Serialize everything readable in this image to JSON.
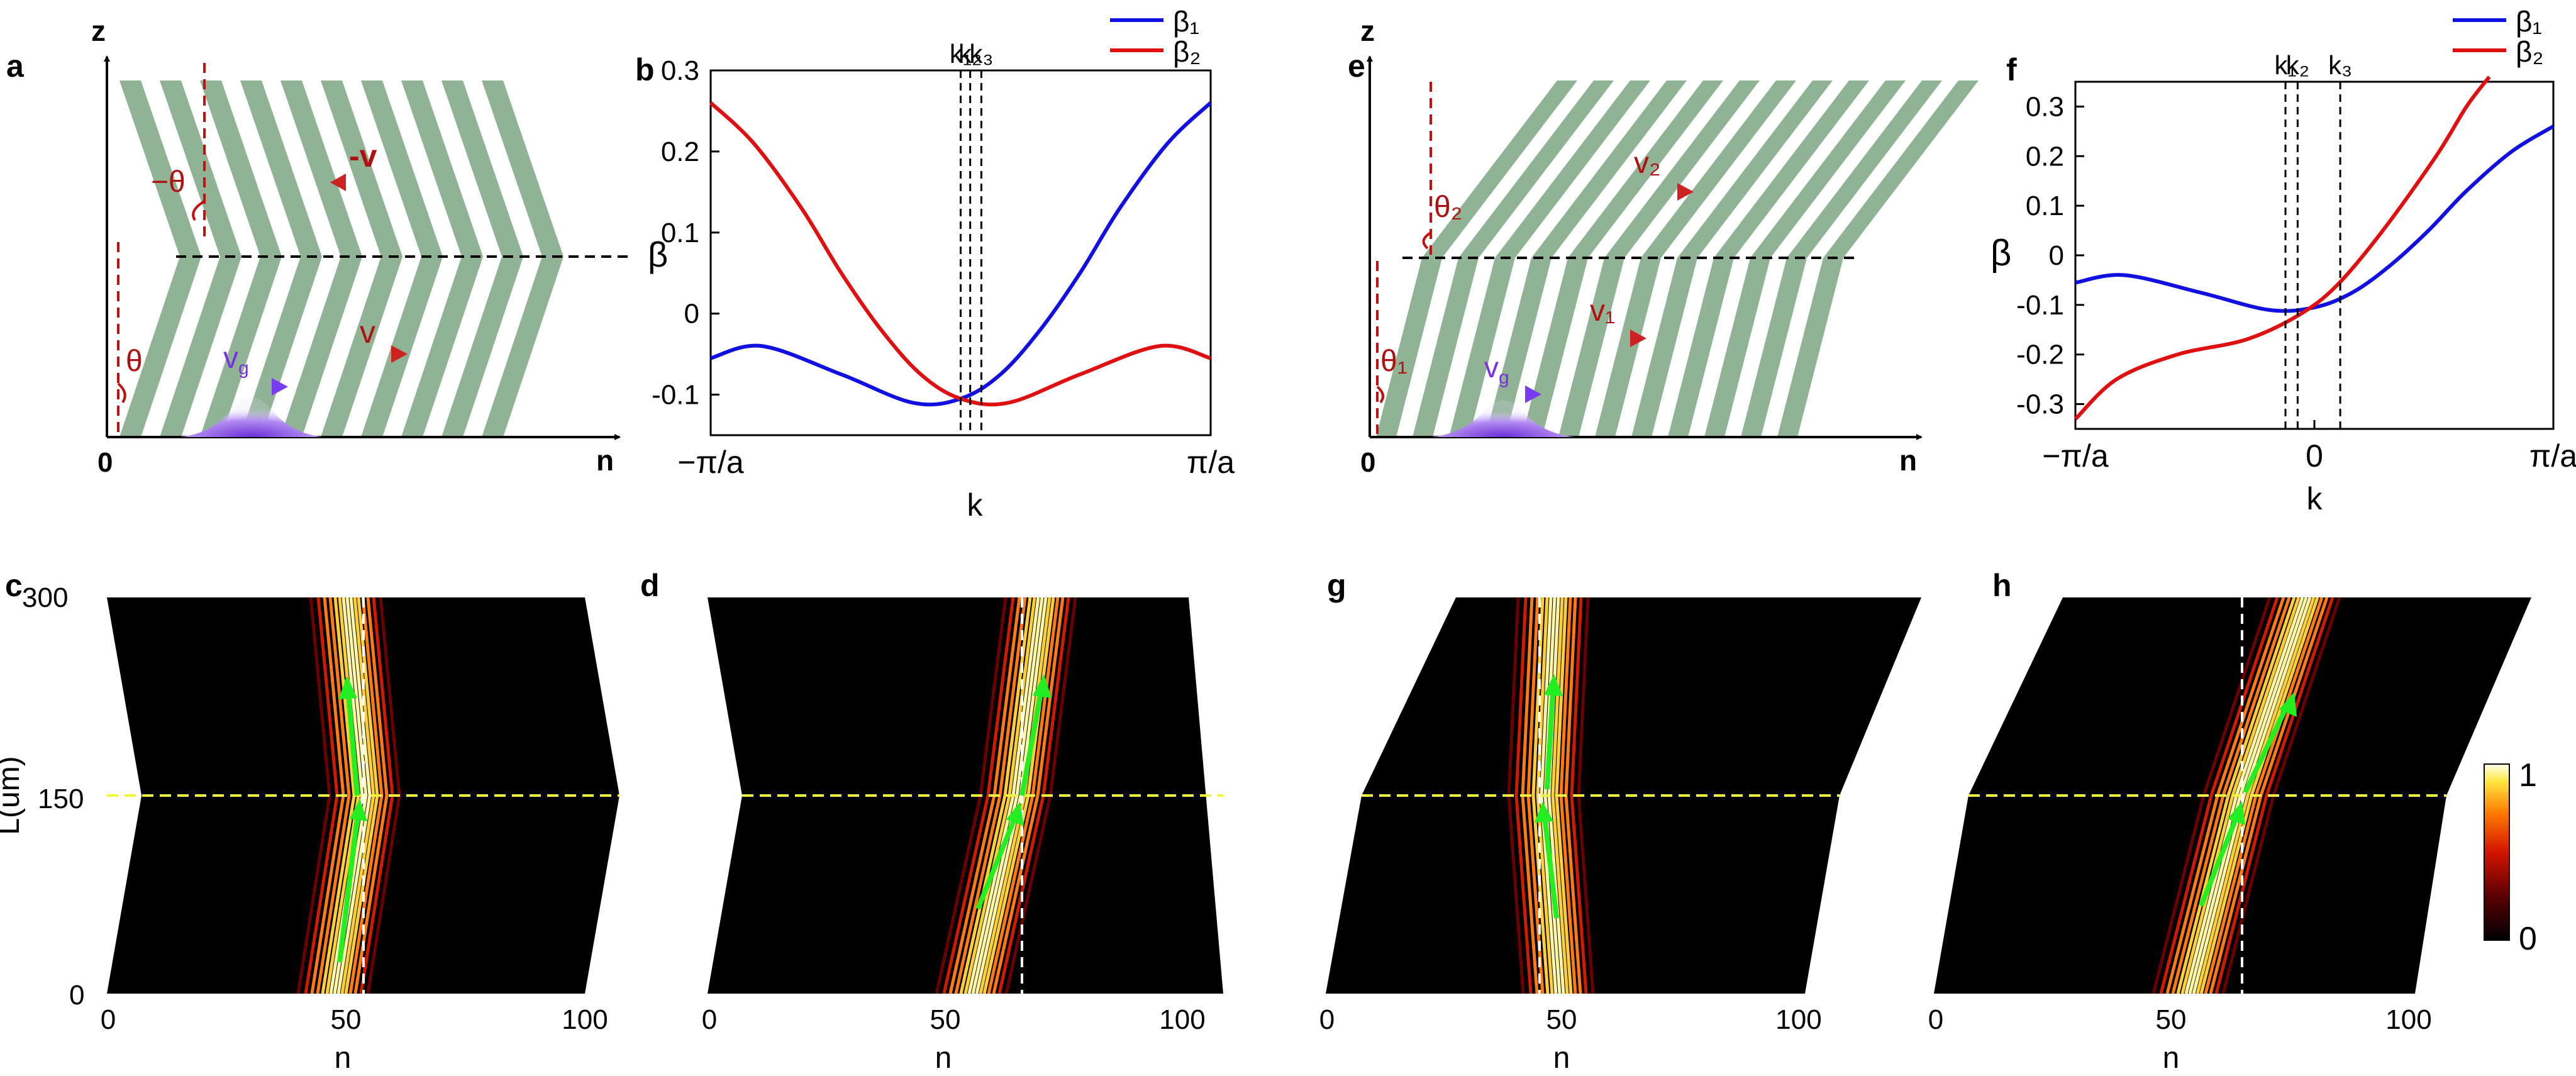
{
  "colors": {
    "stripe": "#8fb394",
    "beta1": "#1010e0",
    "beta2": "#e01010",
    "dash_red": "#c01010",
    "vg": "#8844ee",
    "arrow_green": "#22ee22",
    "dash_yellow": "#f4f43a"
  },
  "panels": {
    "a": {
      "letter": "a",
      "z_label": "z",
      "n_label": "n",
      "origin_label": "0",
      "beta_label": "β",
      "theta_top": "−θ",
      "theta_bottom": "θ",
      "v_top": "-v",
      "v_bottom": "v",
      "vg_label": "v",
      "vg_sub": "g"
    },
    "b": {
      "letter": "b",
      "beta_label": "β",
      "xlabel": "k",
      "x_ticks": [
        "−π/a",
        "π/a"
      ],
      "y_ticks": [
        "0.3",
        "0.2",
        "0.1",
        "0",
        "-0.1"
      ],
      "k_labels": [
        "k₁",
        "k₂",
        "k₃"
      ],
      "legend": [
        "β₁",
        "β₂"
      ]
    },
    "e": {
      "letter": "e",
      "z_label": "z",
      "n_label": "n",
      "origin_label": "0",
      "theta_1": "θ₁",
      "theta_2": "θ₂",
      "v_1": "v₁",
      "v_2": "v₂",
      "vg_label": "v",
      "vg_sub": "g"
    },
    "f": {
      "letter": "f",
      "beta_label": "β",
      "xlabel": "k",
      "x_ticks": [
        "−π/a",
        "0",
        "π/a"
      ],
      "y_ticks": [
        "0.3",
        "0.2",
        "0.1",
        "0",
        "-0.1",
        "-0.2",
        "-0.3"
      ],
      "k_labels": [
        "k₁",
        "k₂",
        "k₃"
      ],
      "legend": [
        "β₁",
        "β₂"
      ]
    },
    "c": {
      "letter": "c",
      "xlabel": "n",
      "ylabel": "L(um)",
      "x_ticks": [
        "0",
        "50",
        "100"
      ],
      "y_ticks": [
        "300",
        "150",
        "0"
      ]
    },
    "d": {
      "letter": "d",
      "xlabel": "n",
      "x_ticks": [
        "0",
        "50",
        "100"
      ]
    },
    "g": {
      "letter": "g",
      "xlabel": "n",
      "x_ticks": [
        "0",
        "50",
        "100"
      ]
    },
    "h": {
      "letter": "h",
      "xlabel": "n",
      "x_ticks": [
        "0",
        "50",
        "100"
      ]
    },
    "colorbar": {
      "max_label": "1",
      "min_label": "0"
    }
  },
  "chart_data": [
    {
      "panel": "b",
      "type": "line",
      "x": "k",
      "xlim": [
        "−π/a",
        "π/a"
      ],
      "ylim": [
        -0.15,
        0.3
      ],
      "k_markers": [
        0.0,
        0.12,
        0.26
      ],
      "series": [
        {
          "name": "β₁",
          "color": "#1010e0",
          "points": [
            [
              -3.14,
              -0.055
            ],
            [
              -2.5,
              -0.04
            ],
            [
              -1.5,
              -0.075
            ],
            [
              -0.6,
              -0.11
            ],
            [
              0.0,
              -0.105
            ],
            [
              0.5,
              -0.075
            ],
            [
              1.0,
              -0.02
            ],
            [
              1.5,
              0.05
            ],
            [
              2.0,
              0.13
            ],
            [
              2.6,
              0.21
            ],
            [
              3.14,
              0.26
            ]
          ]
        },
        {
          "name": "β₂",
          "color": "#e01010",
          "points": [
            [
              -3.14,
              0.26
            ],
            [
              -2.6,
              0.21
            ],
            [
              -2.0,
              0.13
            ],
            [
              -1.5,
              0.05
            ],
            [
              -1.0,
              -0.02
            ],
            [
              -0.5,
              -0.075
            ],
            [
              0.0,
              -0.105
            ],
            [
              0.6,
              -0.11
            ],
            [
              1.5,
              -0.075
            ],
            [
              2.5,
              -0.04
            ],
            [
              3.14,
              -0.055
            ]
          ]
        }
      ]
    },
    {
      "panel": "f",
      "type": "line",
      "x": "k",
      "xlim": [
        "−π/a",
        "π/a"
      ],
      "ylim": [
        -0.35,
        0.35
      ],
      "k_markers": [
        -0.38,
        -0.22,
        0.34
      ],
      "series": [
        {
          "name": "β₁",
          "color": "#1010e0",
          "points": [
            [
              -3.14,
              -0.055
            ],
            [
              -2.5,
              -0.04
            ],
            [
              -1.5,
              -0.075
            ],
            [
              -0.6,
              -0.11
            ],
            [
              0.0,
              -0.105
            ],
            [
              0.5,
              -0.075
            ],
            [
              1.0,
              -0.02
            ],
            [
              1.5,
              0.05
            ],
            [
              2.0,
              0.13
            ],
            [
              2.6,
              0.21
            ],
            [
              3.14,
              0.26
            ]
          ]
        },
        {
          "name": "β₂",
          "color": "#e01010",
          "points": [
            [
              -3.14,
              -0.33
            ],
            [
              -2.6,
              -0.25
            ],
            [
              -1.8,
              -0.2
            ],
            [
              -0.9,
              -0.17
            ],
            [
              -0.2,
              -0.12
            ],
            [
              0.3,
              -0.06
            ],
            [
              0.9,
              0.05
            ],
            [
              1.6,
              0.2
            ],
            [
              2.0,
              0.3
            ],
            [
              2.3,
              0.36
            ]
          ]
        }
      ]
    }
  ]
}
